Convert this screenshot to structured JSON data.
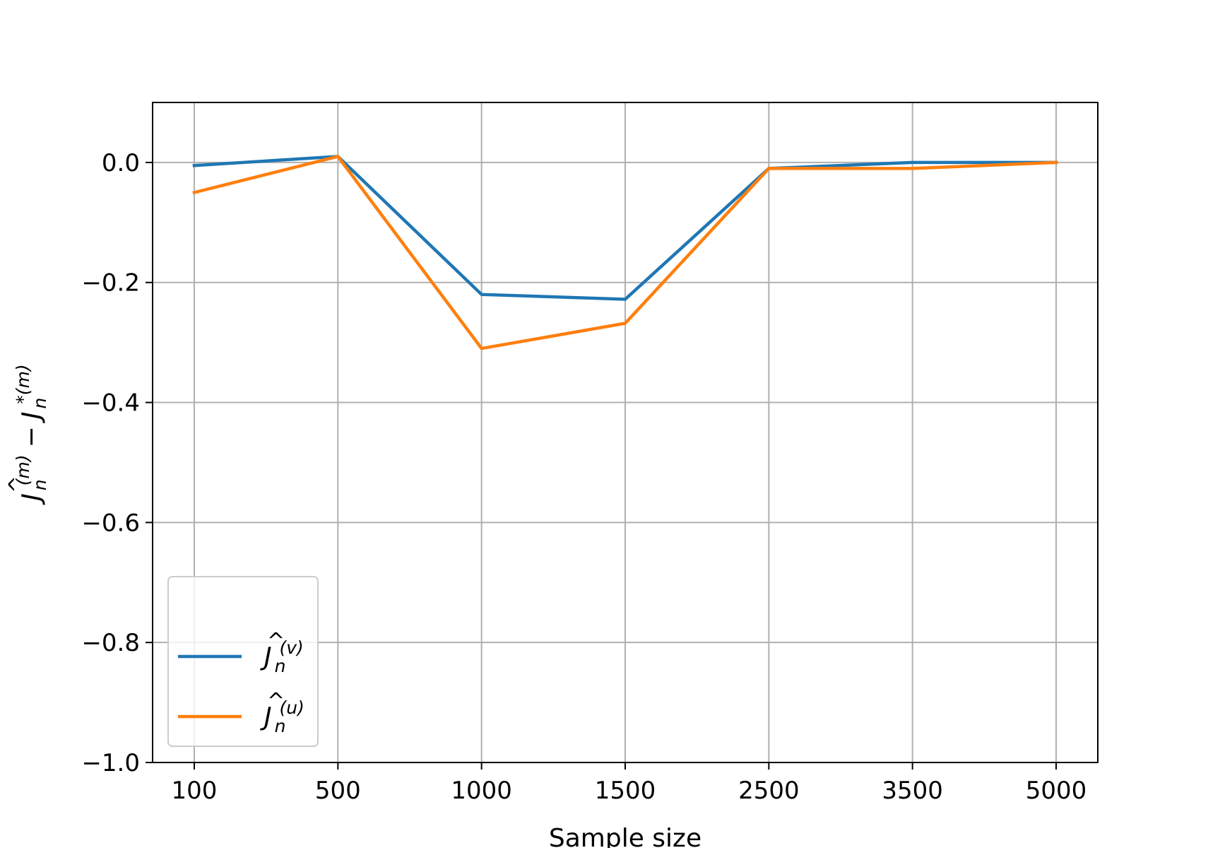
{
  "chart_data": {
    "type": "line",
    "categories": [
      "100",
      "500",
      "1000",
      "1500",
      "2500",
      "3500",
      "5000"
    ],
    "series": [
      {
        "name": "Ĵn(v)",
        "name_parts": {
          "base": "J",
          "sub": "n",
          "sup": "(v)"
        },
        "color": "#1f77b4",
        "values": [
          -0.005,
          0.01,
          -0.22,
          -0.228,
          -0.01,
          0.0,
          0.0
        ]
      },
      {
        "name": "Ĵn(u)",
        "name_parts": {
          "base": "J",
          "sub": "n",
          "sup": "(u)"
        },
        "color": "#ff7f0e",
        "values": [
          -0.05,
          0.01,
          -0.31,
          -0.268,
          -0.01,
          -0.01,
          0.0
        ]
      }
    ],
    "xlabel": "Sample size",
    "ylabel": "Ĵn(m) − Jn*(m)",
    "ylabel_parts": {
      "left_base": "J",
      "left_sub": "n",
      "left_sup": "(m)",
      "minus": "−",
      "right_base": "J",
      "right_sub": "n",
      "right_sup": "*(m)"
    },
    "ylim": [
      -1.0,
      0.1
    ],
    "yticks": [
      0.0,
      -0.2,
      -0.4,
      -0.6,
      -0.8,
      -1.0
    ],
    "ytick_labels": [
      "0.0",
      "−0.2",
      "−0.4",
      "−0.6",
      "−0.8",
      "−1.0"
    ],
    "grid": true,
    "legend_position": "lower-left"
  }
}
